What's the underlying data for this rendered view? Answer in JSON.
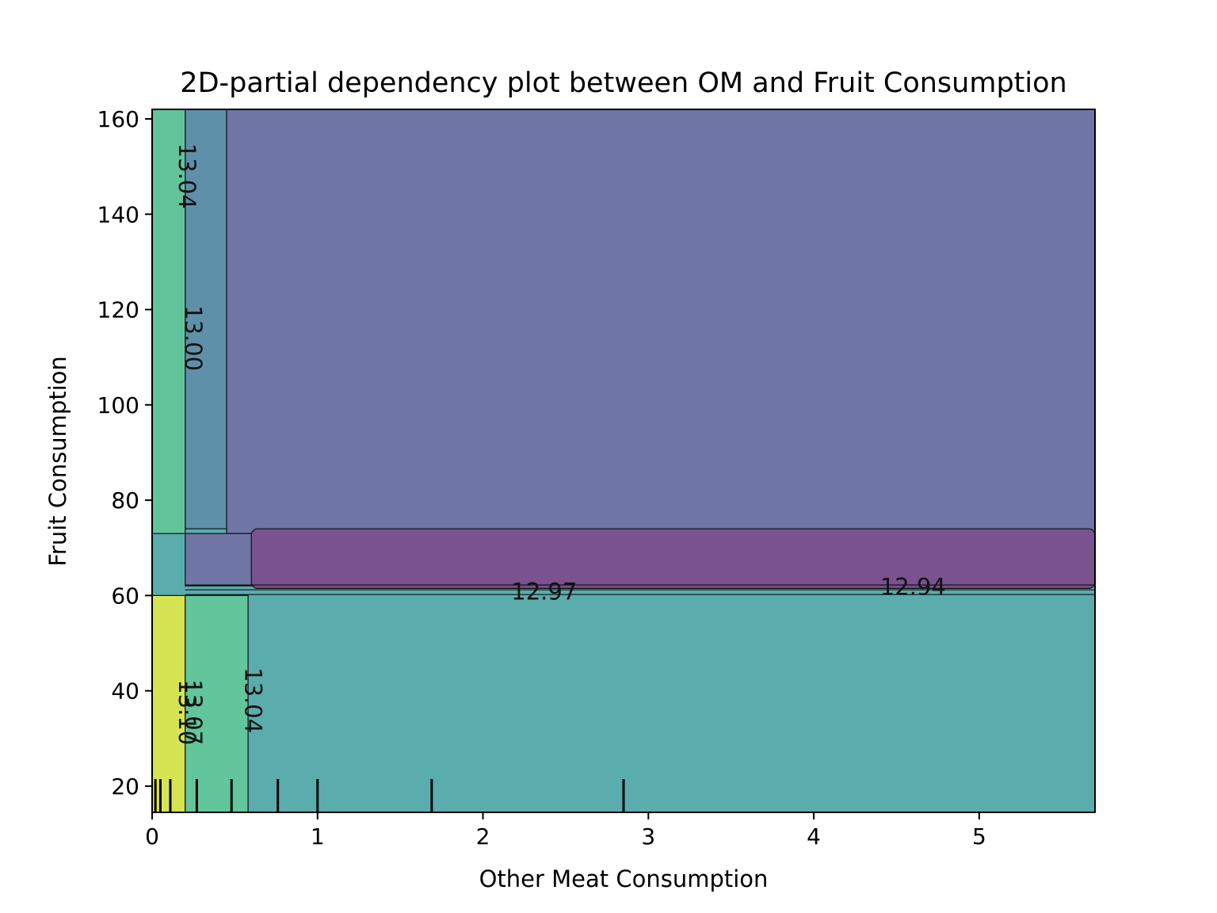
{
  "chart_data": {
    "type": "contour",
    "title": "2D-partial dependency plot between OM and Fruit Consumption",
    "xlabel": "Other Meat Consumption",
    "ylabel": "Fruit Consumption",
    "xlim": [
      0,
      5.7
    ],
    "ylim": [
      14.5,
      162
    ],
    "xticks": [
      "0",
      "1",
      "2",
      "3",
      "4",
      "5"
    ],
    "xtick_values": [
      0,
      1,
      2,
      3,
      4,
      5
    ],
    "yticks": [
      "20",
      "40",
      "60",
      "80",
      "100",
      "120",
      "140",
      "160"
    ],
    "ytick_values": [
      20,
      40,
      60,
      80,
      100,
      120,
      140,
      160
    ],
    "grid": false,
    "colormap": "viridis",
    "regions": [
      {
        "name": "base",
        "x": [
          0,
          5.7
        ],
        "y": [
          14.5,
          162
        ],
        "color": "#5bacad"
      },
      {
        "name": "upper-main",
        "x": [
          0.45,
          5.7
        ],
        "y": [
          73,
          162
        ],
        "color": "#6f76a6"
      },
      {
        "name": "upper-left-band",
        "x": [
          0.2,
          0.45
        ],
        "y": [
          74,
          162
        ],
        "color": "#5f90aa"
      },
      {
        "name": "upper-left-edge",
        "x": [
          0,
          0.2
        ],
        "y": [
          73,
          162
        ],
        "color": "#63c49c"
      },
      {
        "name": "middle-band",
        "x": [
          0.2,
          5.7
        ],
        "y": [
          62,
          73
        ],
        "color": "#6f76a6"
      },
      {
        "name": "middle-low",
        "x": [
          0.6,
          5.7
        ],
        "y": [
          61.5,
          74
        ],
        "color": "#79528f"
      },
      {
        "name": "left-lower",
        "x": [
          0,
          0.2
        ],
        "y": [
          14.5,
          60
        ],
        "color": "#d6e452"
      },
      {
        "name": "left-lower-mid",
        "x": [
          0.2,
          0.58
        ],
        "y": [
          14.5,
          60
        ],
        "color": "#62c59c"
      }
    ],
    "contour_labels": [
      {
        "text": "13.04",
        "x": 0.2,
        "y": 148,
        "rotation": 90
      },
      {
        "text": "13.00",
        "x": 0.24,
        "y": 114,
        "rotation": 90
      },
      {
        "text": "12.97",
        "x": 2.37,
        "y": 60.5,
        "rotation": 0
      },
      {
        "text": "12.94",
        "x": 4.6,
        "y": 61.5,
        "rotation": 0
      },
      {
        "text": "13.10",
        "x": 0.2,
        "y": 35.5,
        "rotation": 90
      },
      {
        "text": "13.07",
        "x": 0.24,
        "y": 35.5,
        "rotation": 90
      },
      {
        "text": "13.04",
        "x": 0.6,
        "y": 38,
        "rotation": 90
      }
    ],
    "rug_x": [
      0.02,
      0.05,
      0.11,
      0.27,
      0.48,
      0.76,
      1.0,
      1.69,
      2.85
    ]
  }
}
